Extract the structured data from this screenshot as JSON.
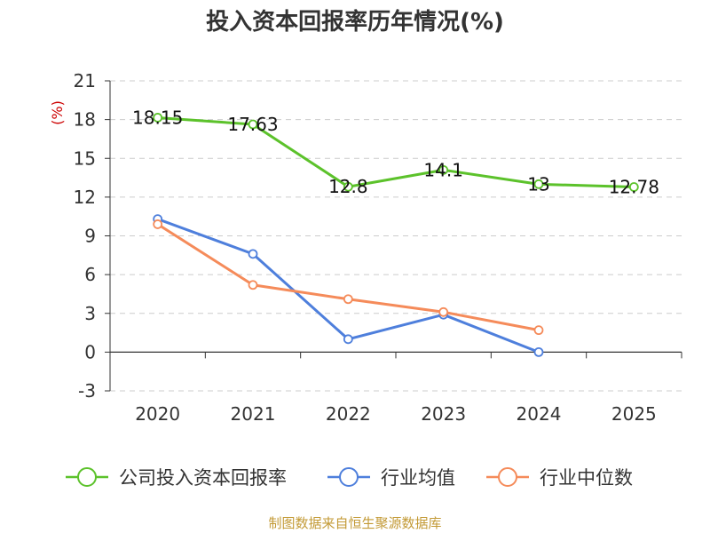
{
  "chart_data": {
    "type": "line",
    "title": "投入资本回报率历年情况(%)",
    "ylabel": "(%)",
    "categories": [
      "2020",
      "2021",
      "2022",
      "2023",
      "2024",
      "2025"
    ],
    "ylim": [
      -3,
      21
    ],
    "yticks": [
      -3,
      0,
      3,
      6,
      9,
      12,
      15,
      18,
      21
    ],
    "grid": true,
    "legend_position": "bottom",
    "series": [
      {
        "name": "公司投入资本回报率",
        "color": "#5cc22b",
        "values": [
          18.15,
          17.63,
          12.8,
          14.1,
          13,
          12.78
        ],
        "labels": [
          "18.15",
          "17.63",
          "12.8",
          "14.1",
          "13",
          "12.78"
        ]
      },
      {
        "name": "行业均值",
        "color": "#4e7fdc",
        "values": [
          10.3,
          7.6,
          1.0,
          2.9,
          0.0,
          null
        ]
      },
      {
        "name": "行业中位数",
        "color": "#f58b5a",
        "values": [
          9.9,
          5.2,
          4.1,
          3.1,
          1.7,
          null
        ]
      }
    ]
  },
  "source": "制图数据来自恒生聚源数据库"
}
